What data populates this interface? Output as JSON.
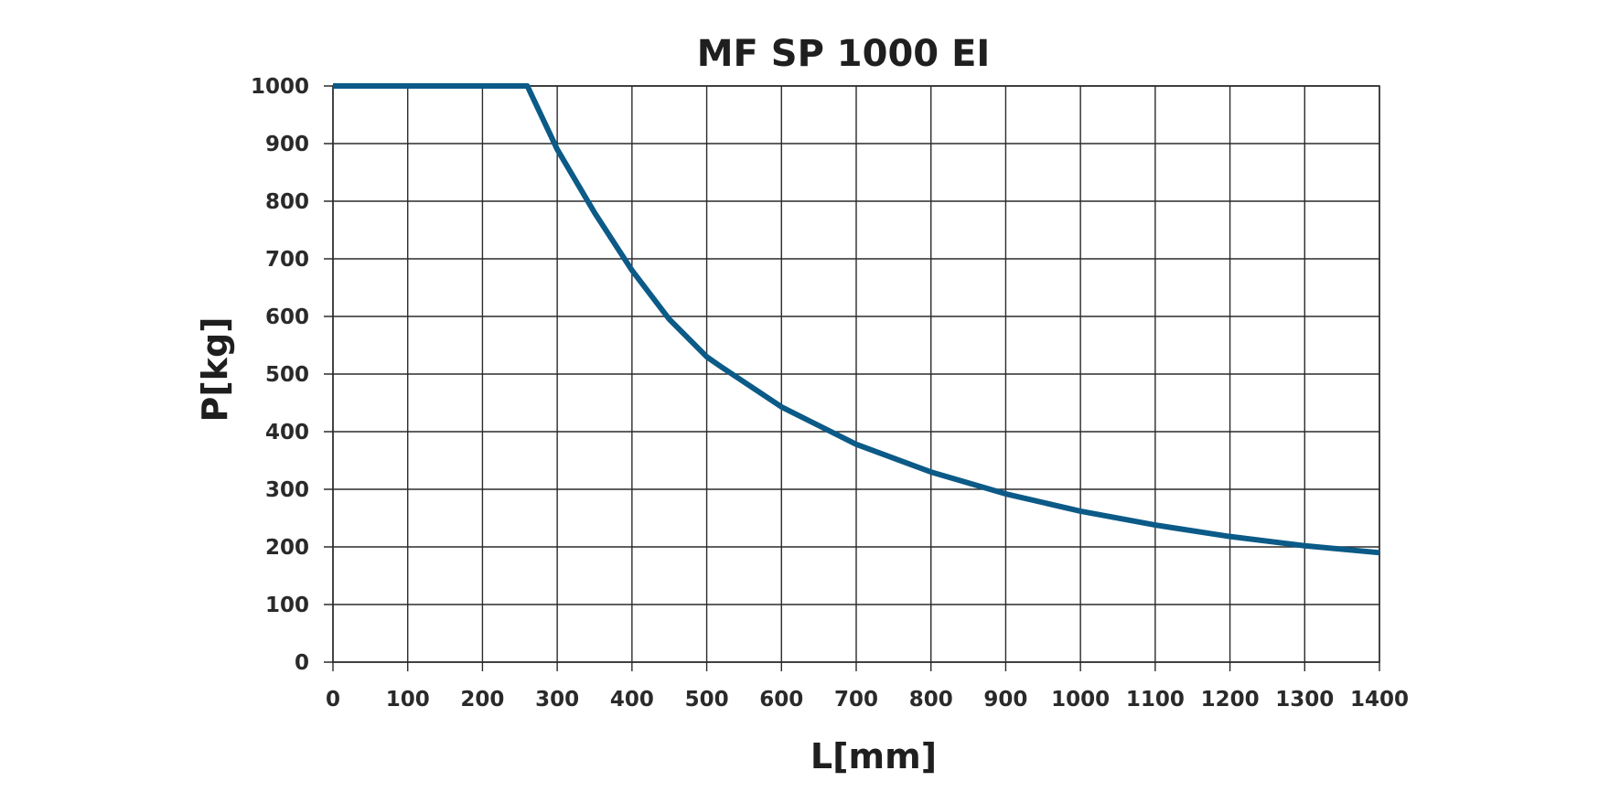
{
  "chart_data": {
    "type": "line",
    "title": "MF SP 1000 EI",
    "xlabel": "L[mm]",
    "ylabel": "P[kg]",
    "xlim": [
      0,
      1400
    ],
    "ylim": [
      0,
      1000
    ],
    "xticks": [
      0,
      100,
      200,
      300,
      400,
      500,
      600,
      700,
      800,
      900,
      1000,
      1100,
      1200,
      1300,
      1400
    ],
    "yticks": [
      0,
      100,
      200,
      300,
      400,
      500,
      600,
      700,
      800,
      900,
      1000
    ],
    "xtick_labels": [
      "0",
      "100",
      "200",
      "300",
      "400",
      "500",
      "600",
      "700",
      "800",
      "900",
      "1000",
      "1100",
      "1200",
      "1300",
      "1400"
    ],
    "ytick_labels": [
      "0",
      "100",
      "200",
      "300",
      "400",
      "500",
      "600",
      "700",
      "800",
      "900",
      "1000"
    ],
    "grid": true,
    "series": [
      {
        "color": "#0b5a87",
        "x": [
          0,
          260,
          300,
          350,
          400,
          450,
          500,
          520,
          600,
          700,
          800,
          900,
          1000,
          1100,
          1200,
          1300,
          1400
        ],
        "y": [
          1000,
          1000,
          890,
          780,
          680,
          595,
          530,
          512,
          443,
          378,
          330,
          292,
          262,
          238,
          218,
          202,
          190
        ]
      }
    ]
  }
}
